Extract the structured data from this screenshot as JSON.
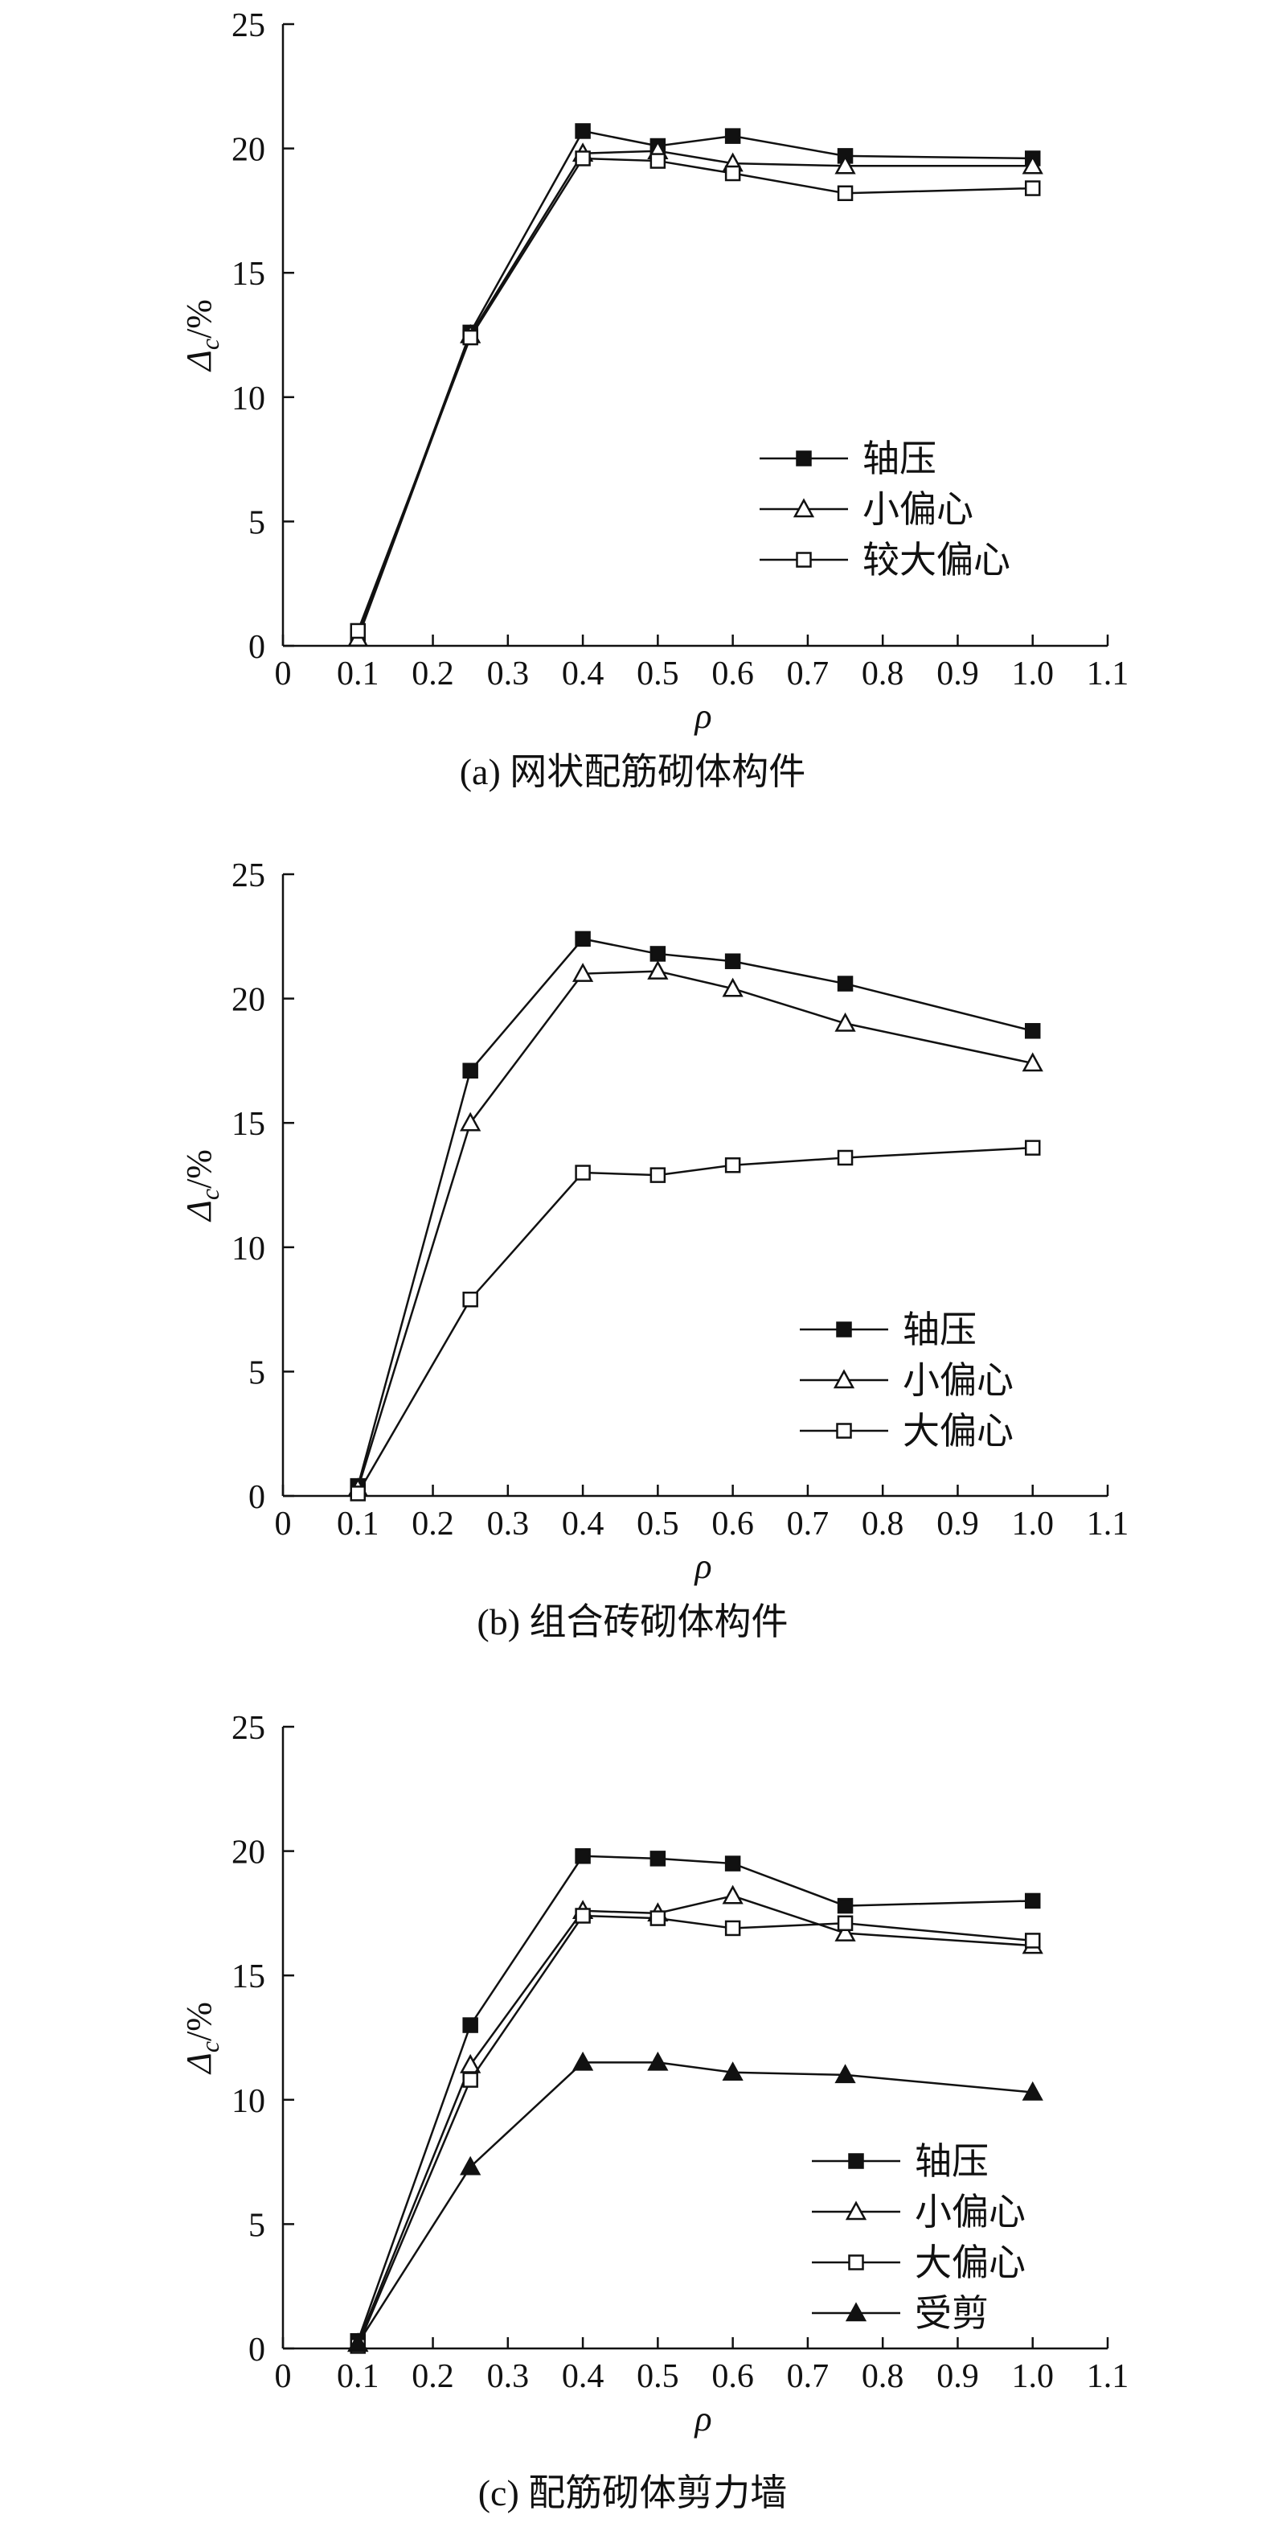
{
  "chart_data": [
    {
      "type": "line",
      "caption": "(a) 网状配筋砌体构件",
      "xlabel": "ρ",
      "ylabel_main": "Δ",
      "ylabel_sub": "c",
      "ylabel_unit": "/%",
      "xlim": [
        0,
        1.1
      ],
      "ylim": [
        0,
        25
      ],
      "xticks": [
        "0",
        "0.1",
        "0.2",
        "0.3",
        "0.4",
        "0.5",
        "0.6",
        "0.7",
        "0.8",
        "0.9",
        "1.0",
        "1.1"
      ],
      "yticks": [
        "0",
        "5",
        "10",
        "15",
        "20",
        "25"
      ],
      "grid": false,
      "legend_position": "right",
      "x": [
        0.1,
        0.25,
        0.4,
        0.5,
        0.6,
        0.75,
        1.0
      ],
      "series": [
        {
          "name": "轴压",
          "marker": "filled-square",
          "values": [
            0.4,
            12.6,
            20.7,
            20.1,
            20.5,
            19.7,
            19.6
          ]
        },
        {
          "name": "小偏心",
          "marker": "open-triangle",
          "values": [
            0.3,
            12.5,
            19.8,
            19.9,
            19.4,
            19.3,
            19.3
          ]
        },
        {
          "name": "较大偏心",
          "marker": "open-square",
          "values": [
            0.6,
            12.4,
            19.6,
            19.5,
            19.0,
            18.2,
            18.4
          ]
        }
      ]
    },
    {
      "type": "line",
      "caption": "(b) 组合砖砌体构件",
      "xlabel": "ρ",
      "ylabel_main": "Δ",
      "ylabel_sub": "c",
      "ylabel_unit": "/%",
      "xlim": [
        0,
        1.1
      ],
      "ylim": [
        0,
        25
      ],
      "xticks": [
        "0",
        "0.1",
        "0.2",
        "0.3",
        "0.4",
        "0.5",
        "0.6",
        "0.7",
        "0.8",
        "0.9",
        "1.0",
        "1.1"
      ],
      "yticks": [
        "0",
        "5",
        "10",
        "15",
        "20",
        "25"
      ],
      "grid": false,
      "legend_position": "bottom-right",
      "x": [
        0.1,
        0.25,
        0.4,
        0.5,
        0.6,
        0.75,
        1.0
      ],
      "series": [
        {
          "name": "轴压",
          "marker": "filled-square",
          "values": [
            0.4,
            17.1,
            22.4,
            21.8,
            21.5,
            20.6,
            18.7
          ]
        },
        {
          "name": "小偏心",
          "marker": "open-triangle",
          "values": [
            0.3,
            15.0,
            21.0,
            21.1,
            20.4,
            19.0,
            17.4
          ]
        },
        {
          "name": "大偏心",
          "marker": "open-square",
          "values": [
            0.1,
            7.9,
            13.0,
            12.9,
            13.3,
            13.6,
            14.0
          ]
        }
      ]
    },
    {
      "type": "line",
      "caption": "(c) 配筋砌体剪力墙",
      "xlabel": "ρ",
      "ylabel_main": "Δ",
      "ylabel_sub": "c",
      "ylabel_unit": "/%",
      "xlim": [
        0,
        1.1
      ],
      "ylim": [
        0,
        25
      ],
      "xticks": [
        "0",
        "0.1",
        "0.2",
        "0.3",
        "0.4",
        "0.5",
        "0.6",
        "0.7",
        "0.8",
        "0.9",
        "1.0",
        "1.1"
      ],
      "yticks": [
        "0",
        "5",
        "10",
        "15",
        "20",
        "25"
      ],
      "grid": false,
      "legend_position": "bottom-right",
      "x": [
        0.1,
        0.25,
        0.4,
        0.5,
        0.6,
        0.75,
        1.0
      ],
      "series": [
        {
          "name": "轴压",
          "marker": "filled-square",
          "values": [
            0.3,
            13.0,
            19.8,
            19.7,
            19.5,
            17.8,
            18.0
          ]
        },
        {
          "name": "小偏心",
          "marker": "open-triangle",
          "values": [
            0.2,
            11.4,
            17.6,
            17.5,
            18.2,
            16.7,
            16.2
          ]
        },
        {
          "name": "大偏心",
          "marker": "open-square",
          "values": [
            0.1,
            10.8,
            17.4,
            17.3,
            16.9,
            17.1,
            16.4
          ]
        },
        {
          "name": "受剪",
          "marker": "filled-triangle",
          "values": [
            0.2,
            7.3,
            11.5,
            11.5,
            11.1,
            11.0,
            10.3
          ]
        }
      ]
    }
  ]
}
